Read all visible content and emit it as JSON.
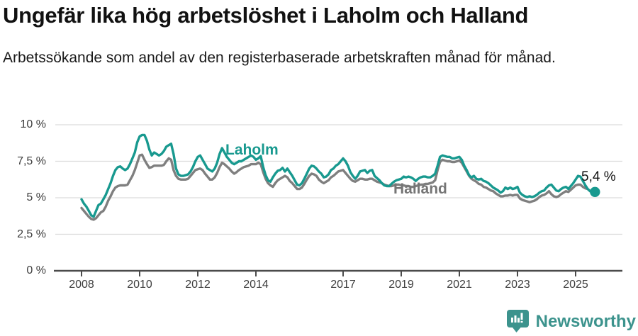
{
  "header": {
    "title": "Ungefär lika hög arbetslöshet i Laholm och Halland",
    "subtitle": "Arbetssökande som andel av den registerbaserade arbetskraften månad för månad."
  },
  "footer": {
    "brand": "Newsworthy"
  },
  "colors": {
    "laholm": "#18998f",
    "halland": "#7f7f7f",
    "grid": "#dcdcdc",
    "axis": "#4b4b4b",
    "brand_teal": "#3c938d"
  },
  "chart_data": {
    "type": "line",
    "title": "Ungefär lika hög arbetslöshet i Laholm och Halland",
    "subtitle": "Arbetssökande som andel av den registerbaserade arbetskraften månad för månad.",
    "unit": "%",
    "x_unit": "month",
    "x_range": [
      "2008-01",
      "2025-09"
    ],
    "ylim": [
      0,
      10
    ],
    "grid": "horizontal",
    "legend_position": "inline-labels",
    "y_ticks": [
      {
        "value": 0,
        "label": "0 %"
      },
      {
        "value": 2.5,
        "label": "2,5 %"
      },
      {
        "value": 5,
        "label": "5 %"
      },
      {
        "value": 7.5,
        "label": "7,5 %"
      },
      {
        "value": 10,
        "label": "10 %"
      }
    ],
    "x_ticks": [
      {
        "year": 2008,
        "label": "2008"
      },
      {
        "year": 2010,
        "label": "2010"
      },
      {
        "year": 2012,
        "label": "2012"
      },
      {
        "year": 2014,
        "label": "2014"
      },
      {
        "year": 2017,
        "label": "2017"
      },
      {
        "year": 2019,
        "label": "2019"
      },
      {
        "year": 2021,
        "label": "2021"
      },
      {
        "year": 2023,
        "label": "2023"
      },
      {
        "year": 2025,
        "label": "2025"
      }
    ],
    "end_label": "5,4 %",
    "end_value": 5.4,
    "series": [
      {
        "name": "Laholm",
        "color": "#18998f",
        "values": [
          4.9,
          4.6,
          4.4,
          4.1,
          3.8,
          3.7,
          4.1,
          4.5,
          4.6,
          4.9,
          5.2,
          5.6,
          6.0,
          6.5,
          6.9,
          7.1,
          7.15,
          7.0,
          6.9,
          7.0,
          7.3,
          7.7,
          8.1,
          8.8,
          9.2,
          9.3,
          9.3,
          8.9,
          8.3,
          7.9,
          8.1,
          8.0,
          7.9,
          8.0,
          8.2,
          8.5,
          8.6,
          8.7,
          8.0,
          7.0,
          6.6,
          6.5,
          6.5,
          6.55,
          6.6,
          6.8,
          7.1,
          7.5,
          7.8,
          7.9,
          7.6,
          7.3,
          7.0,
          6.9,
          6.8,
          7.0,
          7.4,
          8.0,
          8.4,
          8.1,
          7.8,
          7.6,
          7.4,
          7.3,
          7.4,
          7.5,
          7.5,
          7.6,
          7.7,
          7.8,
          7.9,
          7.8,
          7.6,
          7.7,
          7.85,
          7.1,
          6.55,
          6.2,
          6.1,
          6.4,
          6.65,
          6.85,
          6.9,
          7.05,
          6.8,
          7.0,
          6.75,
          6.5,
          6.2,
          5.9,
          5.85,
          6.0,
          6.3,
          6.65,
          7.0,
          7.2,
          7.15,
          7.0,
          6.8,
          6.65,
          6.4,
          6.45,
          6.6,
          6.9,
          7.0,
          7.2,
          7.3,
          7.5,
          7.7,
          7.5,
          7.2,
          6.75,
          6.5,
          6.3,
          6.5,
          6.8,
          6.85,
          6.9,
          6.7,
          6.85,
          6.9,
          6.5,
          6.35,
          6.2,
          6.0,
          5.85,
          5.8,
          5.8,
          5.95,
          6.1,
          6.2,
          6.25,
          6.3,
          6.45,
          6.4,
          6.45,
          6.4,
          6.3,
          6.15,
          6.3,
          6.4,
          6.45,
          6.45,
          6.4,
          6.4,
          6.5,
          6.65,
          7.2,
          7.8,
          7.9,
          7.85,
          7.8,
          7.8,
          7.7,
          7.7,
          7.75,
          7.8,
          7.6,
          7.2,
          6.9,
          6.55,
          6.4,
          6.5,
          6.3,
          6.25,
          6.3,
          6.15,
          6.1,
          6.0,
          5.85,
          5.7,
          5.6,
          5.5,
          5.35,
          5.45,
          5.7,
          5.6,
          5.7,
          5.6,
          5.65,
          5.75,
          5.35,
          5.2,
          5.1,
          5.05,
          5.1,
          5.05,
          5.1,
          5.2,
          5.35,
          5.45,
          5.5,
          5.7,
          5.85,
          5.9,
          5.7,
          5.5,
          5.45,
          5.6,
          5.7,
          5.75,
          5.6,
          5.8,
          6.0,
          6.25,
          6.5,
          6.45,
          6.15,
          5.85,
          5.6,
          5.45,
          5.4,
          5.4
        ]
      },
      {
        "name": "Halland",
        "color": "#7f7f7f",
        "values": [
          4.3,
          4.1,
          3.9,
          3.7,
          3.55,
          3.5,
          3.6,
          3.8,
          4.0,
          4.1,
          4.4,
          4.8,
          5.1,
          5.45,
          5.7,
          5.8,
          5.85,
          5.85,
          5.85,
          5.9,
          6.2,
          6.5,
          6.9,
          7.4,
          7.9,
          7.95,
          7.6,
          7.3,
          7.05,
          7.1,
          7.2,
          7.2,
          7.2,
          7.2,
          7.25,
          7.5,
          7.7,
          7.6,
          6.9,
          6.5,
          6.3,
          6.25,
          6.25,
          6.25,
          6.3,
          6.5,
          6.7,
          6.9,
          6.95,
          7.0,
          6.9,
          6.65,
          6.45,
          6.25,
          6.25,
          6.4,
          6.7,
          7.1,
          7.4,
          7.3,
          7.15,
          7.0,
          6.8,
          6.65,
          6.75,
          6.9,
          7.0,
          7.1,
          7.15,
          7.2,
          7.3,
          7.3,
          7.3,
          7.4,
          7.3,
          6.75,
          6.3,
          6.0,
          5.85,
          5.75,
          6.0,
          6.2,
          6.3,
          6.4,
          6.5,
          6.4,
          6.15,
          6.0,
          5.8,
          5.6,
          5.6,
          5.7,
          5.95,
          6.25,
          6.5,
          6.65,
          6.6,
          6.5,
          6.25,
          6.1,
          6.0,
          6.1,
          6.2,
          6.4,
          6.5,
          6.65,
          6.8,
          6.85,
          6.9,
          6.7,
          6.5,
          6.3,
          6.15,
          6.1,
          6.2,
          6.3,
          6.3,
          6.25,
          6.25,
          6.3,
          6.3,
          6.2,
          6.1,
          6.05,
          6.0,
          5.9,
          5.85,
          5.8,
          5.8,
          5.85,
          5.9,
          5.9,
          5.85,
          5.85,
          5.8,
          5.8,
          5.75,
          5.75,
          5.8,
          5.85,
          5.9,
          5.9,
          5.95,
          5.95,
          6.0,
          6.05,
          6.2,
          6.9,
          7.45,
          7.6,
          7.55,
          7.5,
          7.5,
          7.45,
          7.45,
          7.5,
          7.55,
          7.4,
          7.1,
          6.8,
          6.5,
          6.3,
          6.2,
          6.1,
          5.95,
          5.9,
          5.75,
          5.7,
          5.6,
          5.5,
          5.45,
          5.3,
          5.2,
          5.1,
          5.1,
          5.15,
          5.15,
          5.2,
          5.15,
          5.2,
          5.2,
          4.95,
          4.85,
          4.8,
          4.75,
          4.7,
          4.75,
          4.8,
          4.9,
          5.05,
          5.15,
          5.2,
          5.3,
          5.45,
          5.25,
          5.1,
          5.05,
          5.1,
          5.25,
          5.35,
          5.45,
          5.4,
          5.55,
          5.7,
          5.85,
          5.9,
          5.9,
          5.75,
          5.65,
          5.6,
          5.45,
          5.4,
          5.4
        ]
      }
    ]
  }
}
